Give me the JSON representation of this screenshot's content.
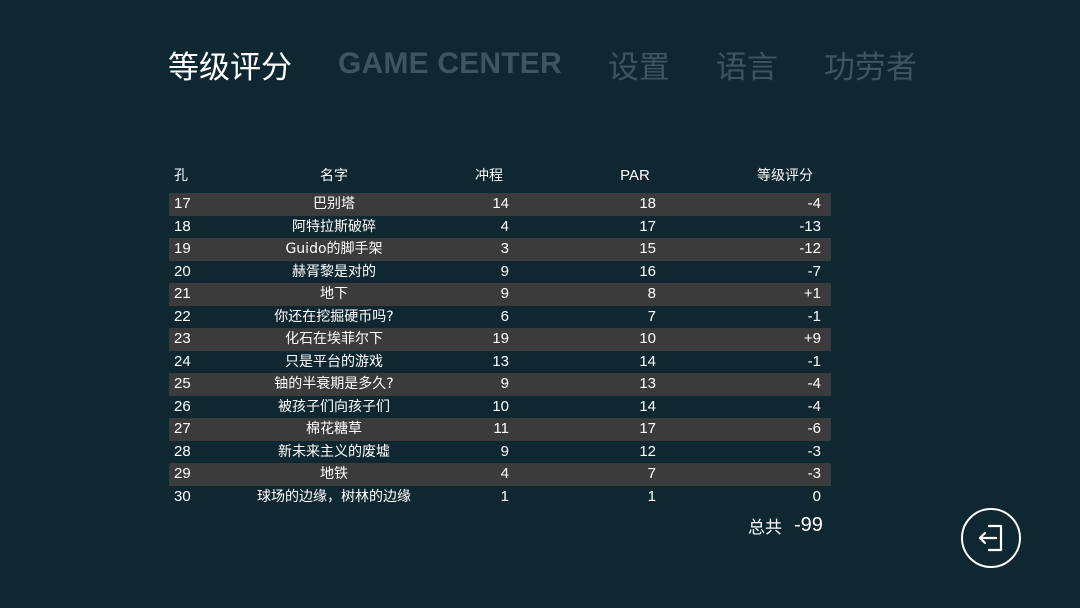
{
  "tabs": [
    {
      "label": "等级评分",
      "active": true
    },
    {
      "label": "GAME CENTER",
      "active": false
    },
    {
      "label": "设置",
      "active": false
    },
    {
      "label": "语言",
      "active": false
    },
    {
      "label": "功劳者",
      "active": false
    }
  ],
  "table": {
    "headers": {
      "hole": "孔",
      "name": "名字",
      "strokes": "冲程",
      "par": "PAR",
      "score": "等级评分"
    },
    "rows": [
      {
        "hole": "17",
        "name": "巴别塔",
        "strokes": "14",
        "par": "18",
        "score": "-4"
      },
      {
        "hole": "18",
        "name": "阿特拉斯破碎",
        "strokes": "4",
        "par": "17",
        "score": "-13"
      },
      {
        "hole": "19",
        "name": "Guido的脚手架",
        "strokes": "3",
        "par": "15",
        "score": "-12"
      },
      {
        "hole": "20",
        "name": "赫胥黎是对的",
        "strokes": "9",
        "par": "16",
        "score": "-7"
      },
      {
        "hole": "21",
        "name": "地下",
        "strokes": "9",
        "par": "8",
        "score": "+1"
      },
      {
        "hole": "22",
        "name": "你还在挖掘硬币吗?",
        "strokes": "6",
        "par": "7",
        "score": "-1"
      },
      {
        "hole": "23",
        "name": "化石在埃菲尔下",
        "strokes": "19",
        "par": "10",
        "score": "+9"
      },
      {
        "hole": "24",
        "name": "只是平台的游戏",
        "strokes": "13",
        "par": "14",
        "score": "-1"
      },
      {
        "hole": "25",
        "name": "铀的半衰期是多久?",
        "strokes": "9",
        "par": "13",
        "score": "-4"
      },
      {
        "hole": "26",
        "name": "被孩子们向孩子们",
        "strokes": "10",
        "par": "14",
        "score": "-4"
      },
      {
        "hole": "27",
        "name": "棉花糖草",
        "strokes": "11",
        "par": "17",
        "score": "-6"
      },
      {
        "hole": "28",
        "name": "新未来主义的废墟",
        "strokes": "9",
        "par": "12",
        "score": "-3"
      },
      {
        "hole": "29",
        "name": "地铁",
        "strokes": "4",
        "par": "7",
        "score": "-3"
      },
      {
        "hole": "30",
        "name": "球场的边缘，树林的边缘",
        "strokes": "1",
        "par": "1",
        "score": "0"
      }
    ]
  },
  "total": {
    "label": "总共",
    "value": "-99"
  },
  "exit_button": {
    "icon": "exit-door-icon"
  },
  "colors": {
    "background": "#0f2730",
    "row_shade": "#3b3b3b",
    "tab_inactive": "#3e5560",
    "text": "#ffffff"
  }
}
